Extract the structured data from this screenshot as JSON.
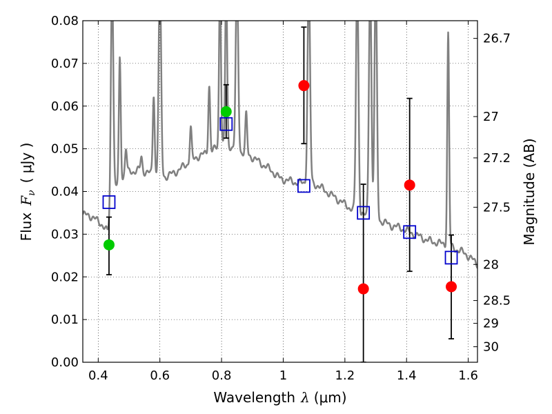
{
  "chart_data": {
    "type": "scatter",
    "xlabel": {
      "text": "Wavelength",
      "symbol": "λ",
      "unit": "(μm)"
    },
    "ylabel": {
      "text": "Flux",
      "symbol": "F",
      "subscript": "ν",
      "unit": "( μJy )"
    },
    "y2label": "Magnitude (AB)",
    "xlim": [
      0.35,
      1.63
    ],
    "ylim": [
      0.0,
      0.08
    ],
    "grid": true,
    "x_ticks": [
      {
        "value": 0.4,
        "label": "0.4"
      },
      {
        "value": 0.6,
        "label": "0.6"
      },
      {
        "value": 0.8,
        "label": "0.8"
      },
      {
        "value": 1.0,
        "label": "1"
      },
      {
        "value": 1.2,
        "label": "1.2"
      },
      {
        "value": 1.4,
        "label": "1.4"
      },
      {
        "value": 1.6,
        "label": "1.6"
      }
    ],
    "y_ticks": [
      {
        "value": 0.0,
        "label": "0.00"
      },
      {
        "value": 0.01,
        "label": "0.01"
      },
      {
        "value": 0.02,
        "label": "0.02"
      },
      {
        "value": 0.03,
        "label": "0.03"
      },
      {
        "value": 0.04,
        "label": "0.04"
      },
      {
        "value": 0.05,
        "label": "0.05"
      },
      {
        "value": 0.06,
        "label": "0.06"
      },
      {
        "value": 0.07,
        "label": "0.07"
      },
      {
        "value": 0.08,
        "label": "0.08"
      }
    ],
    "y2_ticks": [
      {
        "value": 26.7,
        "label": "26.7"
      },
      {
        "value": 27.0,
        "label": "27"
      },
      {
        "value": 27.2,
        "label": "27.2"
      },
      {
        "value": 27.5,
        "label": "27.5"
      },
      {
        "value": 28.0,
        "label": "28"
      },
      {
        "value": 28.5,
        "label": "28.5"
      },
      {
        "value": 29.0,
        "label": "29"
      },
      {
        "value": 30.0,
        "label": "30"
      }
    ],
    "model_spectrum": {
      "color": "#808080",
      "continuum": [
        [
          0.35,
          0.0345
        ],
        [
          0.37,
          0.0345
        ],
        [
          0.39,
          0.0335
        ],
        [
          0.41,
          0.0325
        ],
        [
          0.43,
          0.0305
        ],
        [
          0.445,
          0.034
        ],
        [
          0.455,
          0.04
        ],
        [
          0.47,
          0.043
        ],
        [
          0.5,
          0.0445
        ],
        [
          0.53,
          0.045
        ],
        [
          0.56,
          0.0445
        ],
        [
          0.59,
          0.0435
        ],
        [
          0.62,
          0.0435
        ],
        [
          0.65,
          0.0445
        ],
        [
          0.68,
          0.046
        ],
        [
          0.7,
          0.047
        ],
        [
          0.73,
          0.0485
        ],
        [
          0.76,
          0.049
        ],
        [
          0.78,
          0.05
        ],
        [
          0.8,
          0.051
        ],
        [
          0.82,
          0.051
        ],
        [
          0.84,
          0.05
        ],
        [
          0.87,
          0.049
        ],
        [
          0.9,
          0.048
        ],
        [
          0.93,
          0.0465
        ],
        [
          0.96,
          0.045
        ],
        [
          0.99,
          0.043
        ],
        [
          1.02,
          0.0425
        ],
        [
          1.05,
          0.042
        ],
        [
          1.08,
          0.042
        ],
        [
          1.11,
          0.0415
        ],
        [
          1.14,
          0.04
        ],
        [
          1.17,
          0.0385
        ],
        [
          1.2,
          0.037
        ],
        [
          1.23,
          0.0355
        ],
        [
          1.26,
          0.0345
        ],
        [
          1.29,
          0.0335
        ],
        [
          1.32,
          0.033
        ],
        [
          1.35,
          0.032
        ],
        [
          1.38,
          0.0315
        ],
        [
          1.41,
          0.0305
        ],
        [
          1.44,
          0.0295
        ],
        [
          1.47,
          0.0285
        ],
        [
          1.5,
          0.028
        ],
        [
          1.53,
          0.0275
        ],
        [
          1.56,
          0.0265
        ],
        [
          1.59,
          0.0255
        ],
        [
          1.63,
          0.023
        ]
      ],
      "lines": [
        {
          "x": 0.445,
          "peak": 0.09,
          "w": 0.004
        },
        {
          "x": 0.47,
          "peak": 0.071,
          "w": 0.003
        },
        {
          "x": 0.49,
          "peak": 0.05,
          "w": 0.003
        },
        {
          "x": 0.54,
          "peak": 0.048,
          "w": 0.003
        },
        {
          "x": 0.58,
          "peak": 0.063,
          "w": 0.003
        },
        {
          "x": 0.6,
          "peak": 0.09,
          "w": 0.004
        },
        {
          "x": 0.7,
          "peak": 0.055,
          "w": 0.003
        },
        {
          "x": 0.76,
          "peak": 0.065,
          "w": 0.003
        },
        {
          "x": 0.795,
          "peak": 0.09,
          "w": 0.003
        },
        {
          "x": 0.815,
          "peak": 0.09,
          "w": 0.003
        },
        {
          "x": 0.85,
          "peak": 0.09,
          "w": 0.004
        },
        {
          "x": 0.88,
          "peak": 0.058,
          "w": 0.003
        },
        {
          "x": 1.083,
          "peak": 0.09,
          "w": 0.004
        },
        {
          "x": 1.24,
          "peak": 0.09,
          "w": 0.004
        },
        {
          "x": 1.282,
          "peak": 0.09,
          "w": 0.004
        },
        {
          "x": 1.3,
          "peak": 0.09,
          "w": 0.004
        },
        {
          "x": 1.535,
          "peak": 0.077,
          "w": 0.003
        }
      ]
    },
    "series": [
      {
        "marker": "circle",
        "color": "#00cc00",
        "points": [
          {
            "x": 0.435,
            "y": 0.0275,
            "err_low": 0.0205,
            "err_high": 0.034
          },
          {
            "x": 0.815,
            "y": 0.0587,
            "err_low": 0.0525,
            "err_high": 0.065
          }
        ]
      },
      {
        "marker": "circle",
        "color": "#ff0000",
        "points": [
          {
            "x": 1.067,
            "y": 0.0648,
            "err_low": 0.0512,
            "err_high": 0.0785
          },
          {
            "x": 1.26,
            "y": 0.0172,
            "err_low": 0.0,
            "err_high": 0.0417
          },
          {
            "x": 1.41,
            "y": 0.0415,
            "err_low": 0.0213,
            "err_high": 0.0618
          },
          {
            "x": 1.545,
            "y": 0.0177,
            "err_low": 0.0055,
            "err_high": 0.0298
          }
        ]
      },
      {
        "marker": "square-open",
        "color": "#0000cc",
        "points": [
          {
            "x": 0.435,
            "y": 0.0375
          },
          {
            "x": 0.815,
            "y": 0.0558
          },
          {
            "x": 1.067,
            "y": 0.0413
          },
          {
            "x": 1.26,
            "y": 0.035
          },
          {
            "x": 1.41,
            "y": 0.0305
          },
          {
            "x": 1.545,
            "y": 0.0245
          }
        ]
      }
    ]
  }
}
